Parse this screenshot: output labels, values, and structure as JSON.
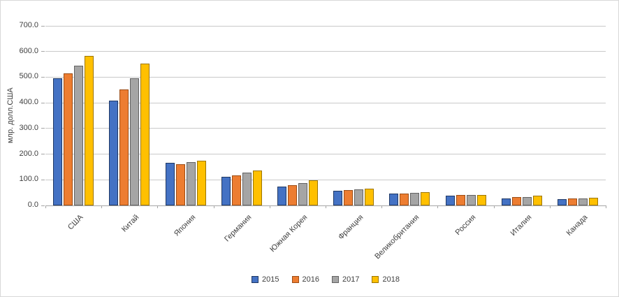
{
  "chart_data": {
    "type": "bar",
    "title": "",
    "xlabel": "",
    "ylabel": "млр. долл.США",
    "ylim": [
      0,
      700
    ],
    "ytick_step": 100,
    "ytick_decimals": 1,
    "grid": true,
    "legend_position": "bottom",
    "categories": [
      "США",
      "Китай",
      "Япония",
      "Германия",
      "Южная Корея",
      "Франция",
      "Великобритания",
      "Россия",
      "Италия",
      "Канада"
    ],
    "series": [
      {
        "name": "2015",
        "color": "#4472C4",
        "border": "#1F3864",
        "values": [
          495,
          408,
          165,
          112,
          74,
          58,
          45,
          38,
          27,
          24
        ]
      },
      {
        "name": "2016",
        "color": "#ED7D31",
        "border": "#9C4C14",
        "values": [
          516,
          451,
          162,
          118,
          79,
          61,
          47,
          40,
          32,
          27
        ]
      },
      {
        "name": "2017",
        "color": "#A5A5A5",
        "border": "#636363",
        "values": [
          545,
          497,
          168,
          128,
          88,
          63,
          49,
          42,
          34,
          27
        ]
      },
      {
        "name": "2018",
        "color": "#FFC000",
        "border": "#9C7500",
        "values": [
          582,
          554,
          173,
          137,
          98,
          66,
          52,
          42,
          38,
          30
        ]
      }
    ]
  }
}
